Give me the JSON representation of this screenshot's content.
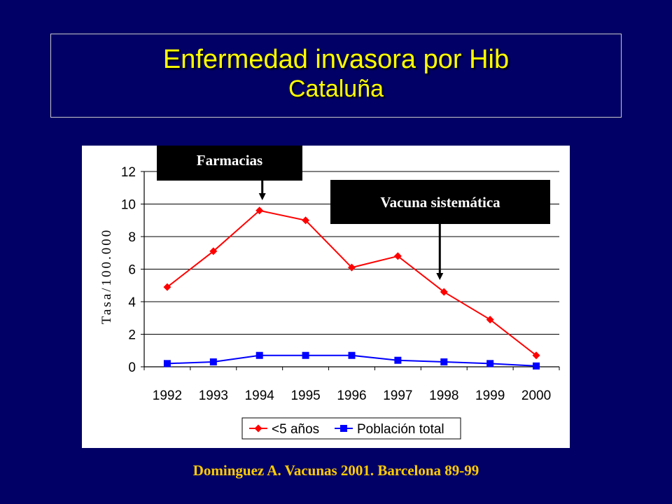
{
  "slide": {
    "title": "Enfermedad invasora por Hib",
    "subtitle": "Cataluña",
    "citation": "Dominguez A. Vacunas 2001. Barcelona 89-99"
  },
  "callouts": {
    "farmacias": "Farmacias",
    "vacuna": "Vacuna sistemática"
  },
  "chart_data": {
    "type": "line",
    "categories": [
      "1992",
      "1993",
      "1994",
      "1995",
      "1996",
      "1997",
      "1998",
      "1999",
      "2000"
    ],
    "series": [
      {
        "name": "<5 años",
        "values": [
          4.9,
          7.1,
          9.6,
          9.0,
          6.1,
          6.8,
          4.6,
          2.9,
          0.7
        ],
        "color": "#ff0000",
        "marker": "diamond"
      },
      {
        "name": "Población total",
        "values": [
          0.2,
          0.3,
          0.7,
          0.7,
          0.7,
          0.4,
          0.3,
          0.2,
          0.05
        ],
        "color": "#0000ff",
        "marker": "square"
      }
    ],
    "ylabel": "Tasa/100.000",
    "ylim": [
      0,
      12
    ],
    "yticks": [
      0,
      2,
      4,
      6,
      8,
      10,
      12
    ],
    "grid": true,
    "legend": "bottom",
    "annotations": [
      {
        "label": "Farmacias",
        "x": "1994"
      },
      {
        "label": "Vacuna sistemática",
        "x": "1998"
      }
    ]
  }
}
